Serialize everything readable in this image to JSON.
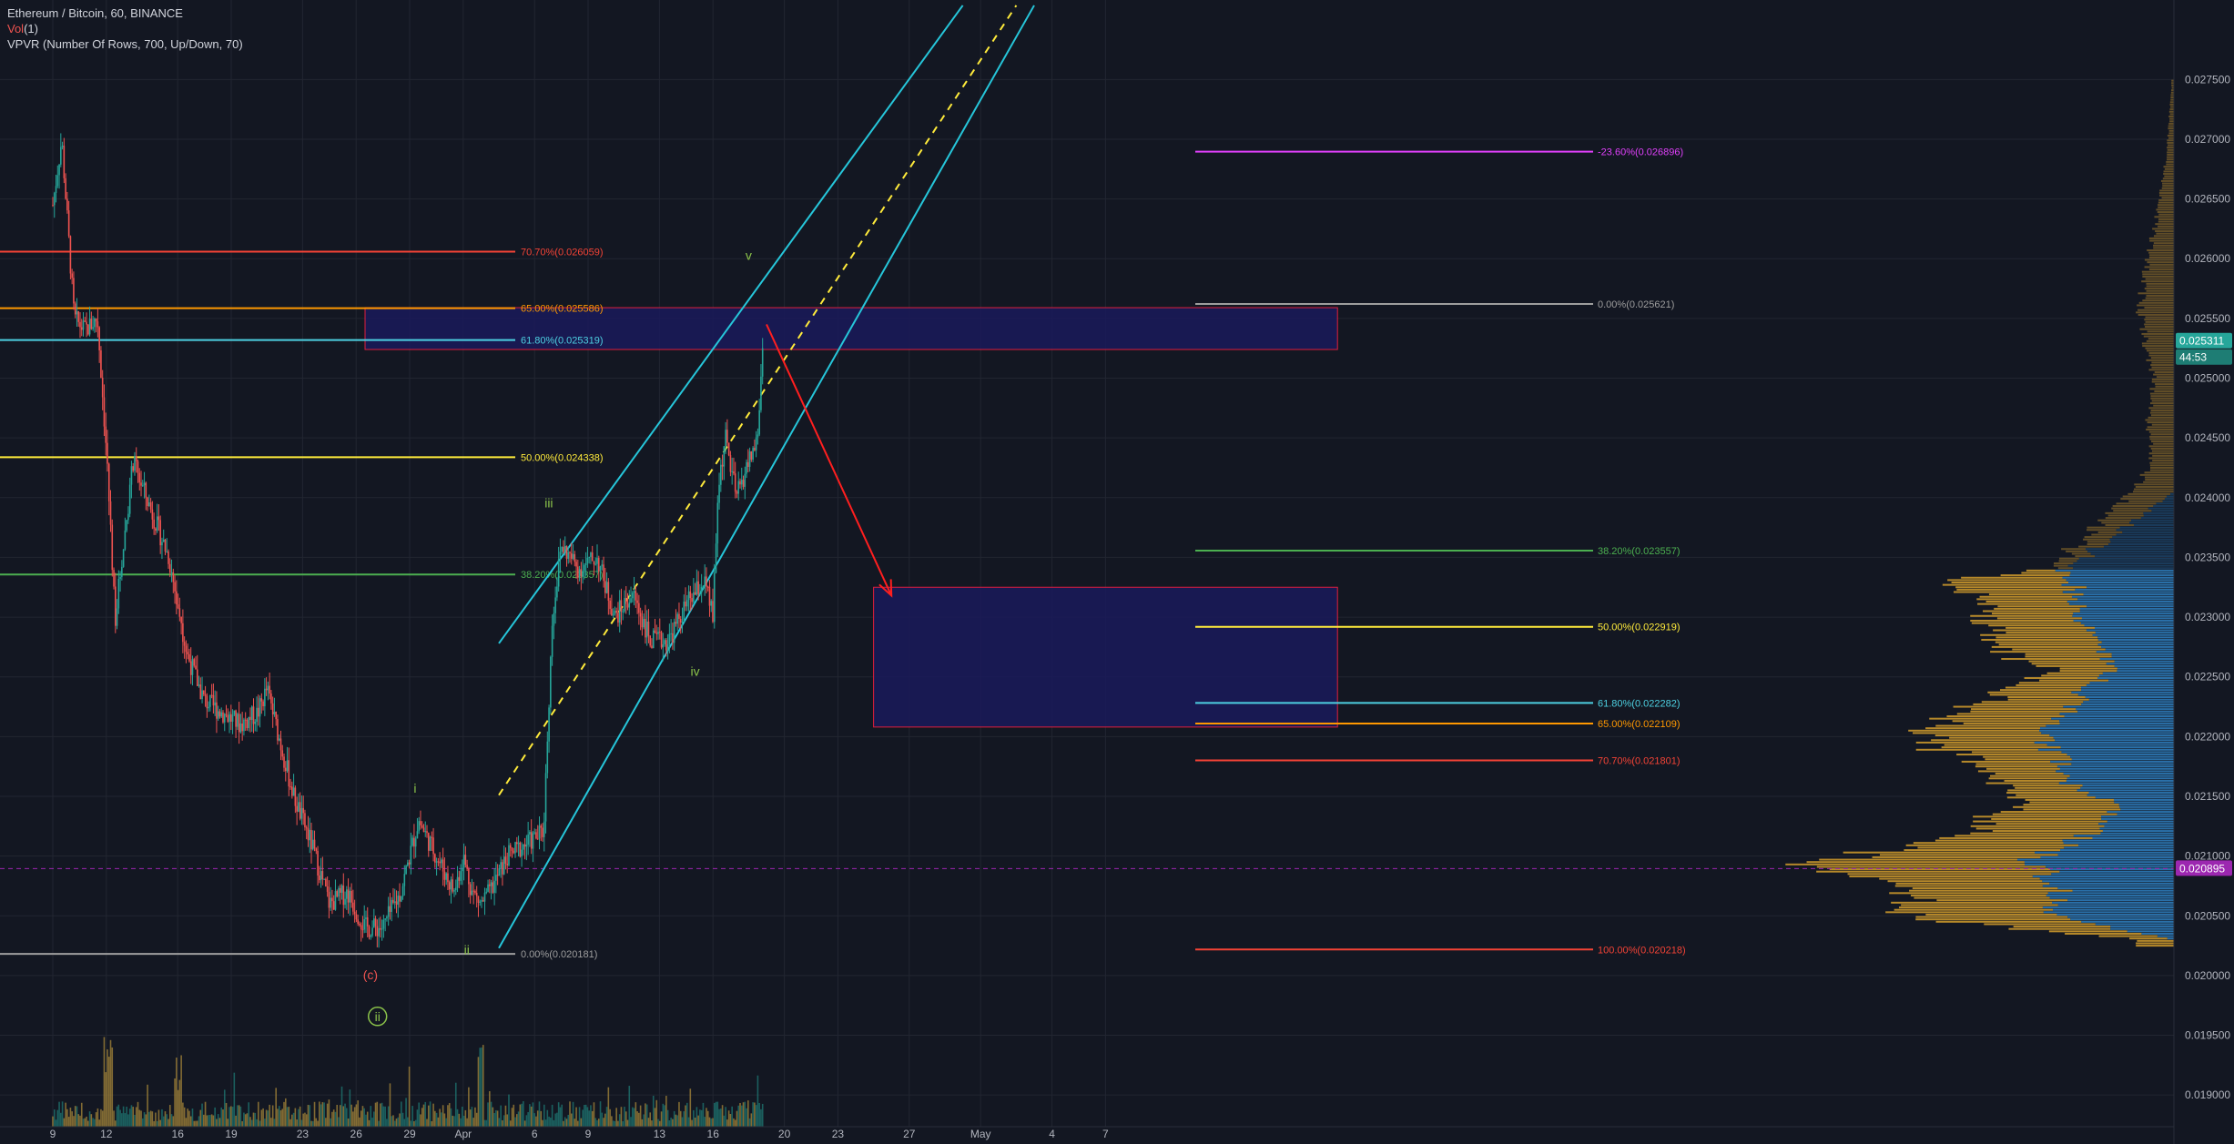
{
  "legend": {
    "symbol": "Ethereum / Bitcoin, 60, BINANCE",
    "vol_prefix": "Vol",
    "vol_value": "(1)",
    "vpvr": "VPVR (Number Of Rows, 700, Up/Down, 70)"
  },
  "colors": {
    "background": "#131722",
    "grid": "#222631",
    "axis_text": "#b2b5be",
    "candle_up": "#26a69a",
    "candle_down": "#ef5350",
    "wave_green": "#8bc34a",
    "wave_red": "#ef5350",
    "channel": "#26c6da",
    "channel_mid": "#ffeb3b",
    "forecast_arrow": "#ff1f1f",
    "zone_border": "#e01e3c",
    "zone_fill": "#1a1a5a",
    "vpvr_up": "#2d7ab8",
    "vpvr_down": "#c9962b",
    "poc": "#9c27b0"
  },
  "chart_data": {
    "type": "candlestick",
    "title": "Ethereum / Bitcoin, 60, BINANCE",
    "timeframe": "60",
    "x_axis_labels": [
      "9",
      "12",
      "16",
      "19",
      "23",
      "26",
      "29",
      "Apr",
      "6",
      "9",
      "13",
      "16",
      "20",
      "23",
      "27",
      "May",
      "4",
      "7"
    ],
    "y_axis_labels": [
      "0.027500",
      "0.027000",
      "0.026500",
      "0.026000",
      "0.025500",
      "0.025000",
      "0.024500",
      "0.024000",
      "0.023500",
      "0.023000",
      "0.022500",
      "0.022000",
      "0.021500",
      "0.021000",
      "0.020500",
      "0.020000",
      "0.019500",
      "0.019000"
    ],
    "ylim": [
      0.01875,
      0.02815
    ],
    "current_price": {
      "value": 0.025311,
      "label": "0.025311",
      "countdown": "44:53"
    },
    "poc_price": {
      "value": 0.020895,
      "label": "0.020895"
    },
    "price_path": [
      [
        9,
        0.02645
      ],
      [
        9.5,
        0.027
      ],
      [
        10.2,
        0.0255
      ],
      [
        10.8,
        0.0254
      ],
      [
        11.5,
        0.0255
      ],
      [
        12,
        0.0244
      ],
      [
        12.5,
        0.023
      ],
      [
        13.5,
        0.0243
      ],
      [
        14.5,
        0.0239
      ],
      [
        15.5,
        0.0235
      ],
      [
        16.5,
        0.0227
      ],
      [
        17.5,
        0.0223
      ],
      [
        18.5,
        0.0222
      ],
      [
        19.5,
        0.0221
      ],
      [
        20.5,
        0.0222
      ],
      [
        21,
        0.0224
      ],
      [
        21.5,
        0.0221
      ],
      [
        22.5,
        0.0215
      ],
      [
        23.5,
        0.0211
      ],
      [
        24.5,
        0.0206
      ],
      [
        25.5,
        0.0207
      ],
      [
        26.5,
        0.0204
      ],
      [
        27.5,
        0.0204
      ],
      [
        28.5,
        0.0207
      ],
      [
        29,
        0.021
      ],
      [
        29.5,
        0.0213
      ],
      [
        30.5,
        0.021
      ],
      [
        31.5,
        0.0207
      ],
      [
        32,
        0.021
      ],
      [
        32.5,
        0.0207
      ],
      [
        33,
        0.0206
      ],
      [
        33.5,
        0.0207
      ],
      [
        34.5,
        0.021
      ],
      [
        35.5,
        0.0211
      ],
      [
        36.5,
        0.0212
      ],
      [
        37,
        0.023
      ],
      [
        37.5,
        0.0236
      ],
      [
        38.5,
        0.0234
      ],
      [
        39.5,
        0.0235
      ],
      [
        40.5,
        0.023
      ],
      [
        41.5,
        0.0232
      ],
      [
        42.5,
        0.0228
      ],
      [
        43.5,
        0.0228
      ],
      [
        44.5,
        0.0231
      ],
      [
        45.5,
        0.0233
      ],
      [
        46,
        0.023
      ],
      [
        46.3,
        0.0241
      ],
      [
        46.7,
        0.0245
      ],
      [
        47.3,
        0.024
      ],
      [
        48,
        0.0243
      ],
      [
        48.5,
        0.0245
      ],
      [
        48.8,
        0.0253
      ]
    ],
    "fib_retracement_left": [
      {
        "label": "70.70%(0.026059)",
        "value": 0.026059,
        "color": "#f44336"
      },
      {
        "label": "65.00%(0.025586)",
        "value": 0.025586,
        "color": "#ff9800"
      },
      {
        "label": "61.80%(0.025319)",
        "value": 0.025319,
        "color": "#4dd0e1"
      },
      {
        "label": "50.00%(0.024338)",
        "value": 0.024338,
        "color": "#ffeb3b"
      },
      {
        "label": "38.20%(0.023357)",
        "value": 0.023357,
        "color": "#4caf50"
      },
      {
        "label": "0.00%(0.020181)",
        "value": 0.020181,
        "color": "#9e9e9e"
      }
    ],
    "fib_retracement_right": [
      {
        "label": "-23.60%(0.026896)",
        "value": 0.026896,
        "color": "#e040fb"
      },
      {
        "label": "0.00%(0.025621)",
        "value": 0.025621,
        "color": "#9e9e9e"
      },
      {
        "label": "38.20%(0.023557)",
        "value": 0.023557,
        "color": "#4caf50"
      },
      {
        "label": "50.00%(0.022919)",
        "value": 0.022919,
        "color": "#ffeb3b"
      },
      {
        "label": "61.80%(0.022282)",
        "value": 0.022282,
        "color": "#4dd0e1"
      },
      {
        "label": "65.00%(0.022109)",
        "value": 0.022109,
        "color": "#ff9800"
      },
      {
        "label": "70.70%(0.021801)",
        "value": 0.021801,
        "color": "#f44336"
      },
      {
        "label": "100.00%(0.020218)",
        "value": 0.020218,
        "color": "#f44336"
      }
    ],
    "zones": [
      {
        "from_date": 26.5,
        "to_date": 81,
        "top": 0.02559,
        "bottom": 0.02524
      },
      {
        "from_date": 55,
        "to_date": 81,
        "top": 0.02325,
        "bottom": 0.02208
      }
    ],
    "channel": {
      "upper": [
        [
          34,
          0.02278
        ],
        [
          60,
          0.02812
        ]
      ],
      "lower": [
        [
          34,
          0.02023
        ],
        [
          64,
          0.02812
        ]
      ],
      "mid": [
        [
          34,
          0.02151
        ],
        [
          63,
          0.02812
        ]
      ]
    },
    "forecast_arrow": [
      [
        49,
        0.02545
      ],
      [
        56,
        0.02318
      ]
    ],
    "wave_labels": [
      {
        "text": "(c)",
        "date": 26.8,
        "price": 0.01997,
        "color": "#ef5350"
      },
      {
        "text": "ii",
        "date": 27.2,
        "price": 0.01962,
        "color": "#8bc34a",
        "circled": true
      },
      {
        "text": "i",
        "date": 29.3,
        "price": 0.02153,
        "color": "#8bc34a"
      },
      {
        "text": "ii",
        "date": 32.2,
        "price": 0.02018,
        "color": "#8bc34a"
      },
      {
        "text": "iii",
        "date": 36.8,
        "price": 0.02392,
        "color": "#8bc34a"
      },
      {
        "text": "iv",
        "date": 45,
        "price": 0.02251,
        "color": "#8bc34a"
      },
      {
        "text": "v",
        "date": 48,
        "price": 0.02599,
        "color": "#8bc34a"
      }
    ],
    "vpvr_profile": [
      [
        0.0234,
        [
          115,
          17
        ]
      ],
      [
        0.0233,
        [
          110,
          145
        ]
      ],
      [
        0.0231,
        [
          110,
          90
        ]
      ],
      [
        0.0229,
        [
          95,
          115
        ]
      ],
      [
        0.0227,
        [
          80,
          110
        ]
      ],
      [
        0.02255,
        [
          70,
          65
        ]
      ],
      [
        0.0224,
        [
          95,
          90
        ]
      ],
      [
        0.0222,
        [
          115,
          115
        ]
      ],
      [
        0.022,
        [
          140,
          135
        ]
      ],
      [
        0.0218,
        [
          130,
          105
        ]
      ],
      [
        0.0216,
        [
          110,
          70
        ]
      ],
      [
        0.0214,
        [
          60,
          115
        ]
      ],
      [
        0.0212,
        [
          90,
          140
        ]
      ],
      [
        0.021,
        [
          150,
          200
        ]
      ],
      [
        0.0209,
        [
          150,
          255
        ]
      ],
      [
        0.0208,
        [
          130,
          190
        ]
      ],
      [
        0.02065,
        [
          125,
          165
        ]
      ],
      [
        0.0205,
        [
          130,
          165
        ]
      ],
      [
        0.0204,
        [
          70,
          120
        ]
      ],
      [
        0.0203,
        [
          0,
          40
        ]
      ],
      [
        0.02405,
        [
          0,
          45
        ]
      ],
      [
        0.0243,
        [
          0,
          25
        ]
      ],
      [
        0.0247,
        [
          0,
          28
        ]
      ],
      [
        0.025,
        [
          0,
          22
        ]
      ],
      [
        0.0253,
        [
          0,
          32
        ]
      ],
      [
        0.0256,
        [
          0,
          38
        ]
      ],
      [
        0.026,
        [
          0,
          28
        ]
      ],
      [
        0.0265,
        [
          0,
          15
        ]
      ],
      [
        0.0269,
        [
          0,
          8
        ]
      ],
      [
        0.0274,
        [
          0,
          3
        ]
      ]
    ],
    "volume_max_hint": "spikes near 12, 16 and 33"
  }
}
